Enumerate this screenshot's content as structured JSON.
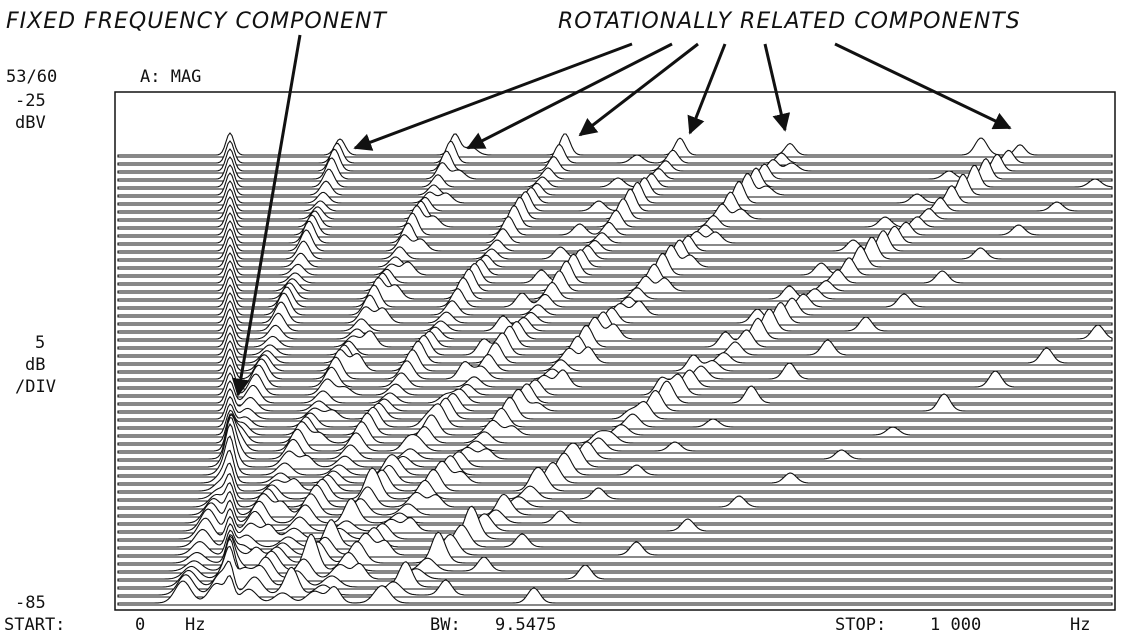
{
  "annotations": {
    "left": "FIXED FREQUENCY COMPONENT",
    "right": "ROTATIONALLY RELATED COMPONENTS"
  },
  "display": {
    "trace_count": "53/60",
    "channel": "A: MAG",
    "top_level": "-25",
    "top_unit": "dBV",
    "scale_value": "5",
    "scale_unit": "dB",
    "scale_per": "/DIV",
    "bottom_level": "-85",
    "start_label": "START:",
    "start_value": "0",
    "start_unit": "Hz",
    "bw_label": "BW:",
    "bw_value": "9.5475",
    "stop_label": "STOP:",
    "stop_value": "1 000",
    "stop_unit": "Hz"
  }
}
